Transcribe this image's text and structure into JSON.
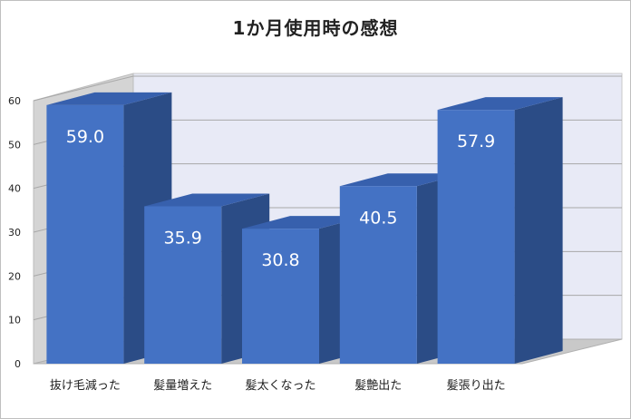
{
  "chart_data": {
    "type": "bar",
    "title": "1か月使用時の感想",
    "categories": [
      "抜け毛減った",
      "髪量増えた",
      "髪太くなった",
      "髪艶出た",
      "髪張り出た"
    ],
    "values": [
      59.0,
      35.9,
      30.8,
      40.5,
      57.9
    ],
    "data_labels": [
      "59.0",
      "35.9",
      "30.8",
      "40.5",
      "57.9"
    ],
    "yticks": [
      "0",
      "10",
      "20",
      "30",
      "40",
      "50",
      "60"
    ],
    "ylim": [
      0,
      60
    ],
    "grid": true,
    "style": "3d-column",
    "colors": {
      "bar_front": "#4472c4",
      "bar_side": "#2b4c86",
      "bar_top": "#3760ad",
      "wall": "#e8eaf6",
      "floor": "#c9c9c9"
    }
  }
}
